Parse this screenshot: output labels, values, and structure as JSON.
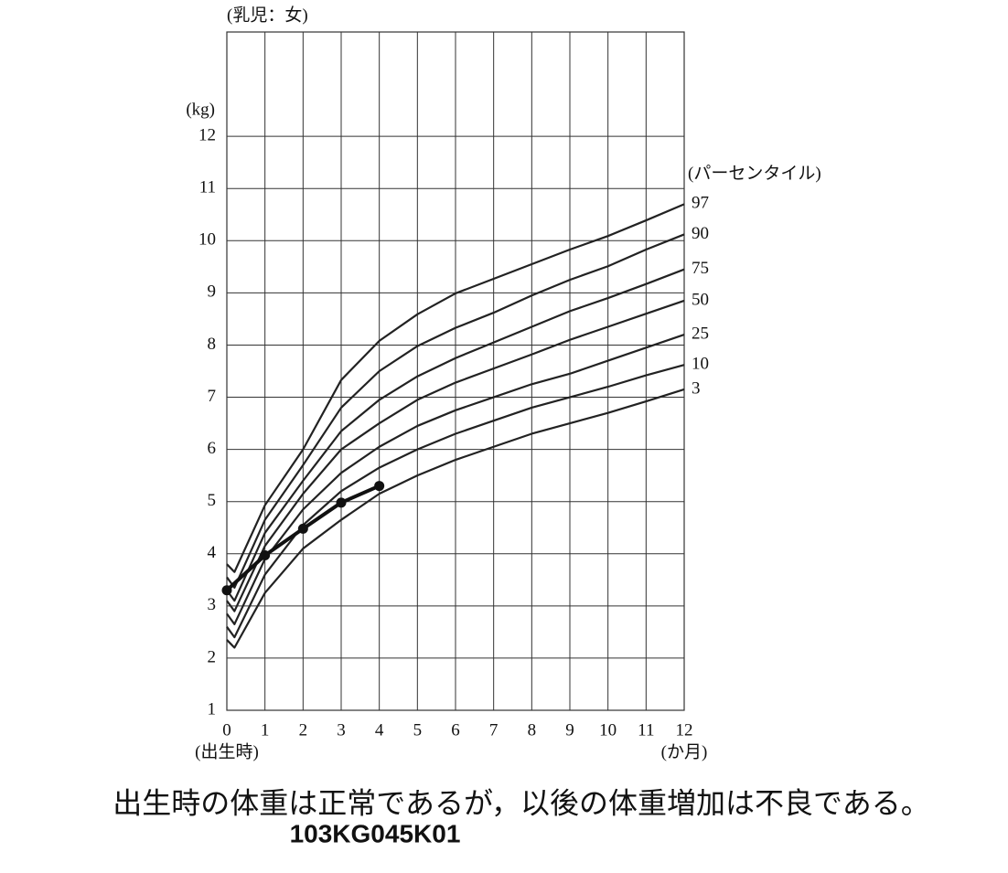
{
  "chart_data": {
    "type": "line",
    "subtitle": "(乳児：女)",
    "y_label": "(kg)",
    "x_label": "(か月)",
    "x_origin_label": "(出生時)",
    "legend_title": "(パーセンタイル)",
    "xlim": [
      0,
      12
    ],
    "xticks": [
      0,
      1,
      2,
      3,
      4,
      5,
      6,
      7,
      8,
      9,
      10,
      11,
      12
    ],
    "ylim": [
      1,
      14
    ],
    "yticks": [
      1,
      2,
      3,
      4,
      5,
      6,
      7,
      8,
      9,
      10,
      11,
      12
    ],
    "grid": true,
    "series": [
      {
        "name": "97",
        "color": "#222",
        "x": [
          0,
          0.2,
          1,
          2,
          3,
          4,
          5,
          6,
          7,
          8,
          9,
          10,
          11,
          12
        ],
        "values": [
          3.8,
          3.65,
          4.93,
          6.0,
          7.33,
          8.08,
          8.59,
          8.99,
          9.27,
          9.55,
          9.83,
          10.09,
          10.39,
          10.7
        ]
      },
      {
        "name": "90",
        "color": "#222",
        "x": [
          0,
          0.2,
          1,
          2,
          3,
          4,
          5,
          6,
          7,
          8,
          9,
          10,
          11,
          12
        ],
        "values": [
          3.55,
          3.35,
          4.65,
          5.7,
          6.8,
          7.5,
          7.98,
          8.33,
          8.62,
          8.95,
          9.25,
          9.51,
          9.83,
          10.12
        ]
      },
      {
        "name": "75",
        "color": "#222",
        "x": [
          0,
          0.2,
          1,
          2,
          3,
          4,
          5,
          6,
          7,
          8,
          9,
          10,
          11,
          12
        ],
        "values": [
          3.3,
          3.1,
          4.4,
          5.4,
          6.35,
          6.95,
          7.4,
          7.75,
          8.05,
          8.35,
          8.65,
          8.9,
          9.17,
          9.45
        ]
      },
      {
        "name": "50",
        "color": "#222",
        "x": [
          0,
          0.2,
          1,
          2,
          3,
          4,
          5,
          6,
          7,
          8,
          9,
          10,
          11,
          12
        ],
        "values": [
          3.1,
          2.9,
          4.15,
          5.15,
          6.0,
          6.5,
          6.95,
          7.28,
          7.55,
          7.82,
          8.1,
          8.35,
          8.6,
          8.85
        ]
      },
      {
        "name": "25",
        "color": "#222",
        "x": [
          0,
          0.2,
          1,
          2,
          3,
          4,
          5,
          6,
          7,
          8,
          9,
          10,
          11,
          12
        ],
        "values": [
          2.85,
          2.65,
          3.9,
          4.85,
          5.55,
          6.05,
          6.45,
          6.75,
          7.0,
          7.25,
          7.45,
          7.7,
          7.95,
          8.2
        ]
      },
      {
        "name": "10",
        "color": "#222",
        "x": [
          0,
          0.2,
          1,
          2,
          3,
          4,
          5,
          6,
          7,
          8,
          9,
          10,
          11,
          12
        ],
        "values": [
          2.6,
          2.4,
          3.6,
          4.55,
          5.2,
          5.65,
          6.0,
          6.3,
          6.55,
          6.8,
          7.0,
          7.2,
          7.42,
          7.62
        ]
      },
      {
        "name": "3",
        "color": "#222",
        "x": [
          0,
          0.2,
          1,
          2,
          3,
          4,
          5,
          6,
          7,
          8,
          9,
          10,
          11,
          12
        ],
        "values": [
          2.35,
          2.2,
          3.25,
          4.1,
          4.65,
          5.15,
          5.5,
          5.8,
          6.05,
          6.3,
          6.5,
          6.7,
          6.92,
          7.15
        ]
      },
      {
        "color": "#111",
        "x": [
          0,
          1,
          2,
          3,
          4
        ],
        "values": [
          3.3,
          3.97,
          4.48,
          4.98,
          5.3
        ],
        "markers": true
      }
    ]
  },
  "caption": "出生時の体重は正常であるが，以後の体重増加は不良である。",
  "code": "103KG045K01"
}
